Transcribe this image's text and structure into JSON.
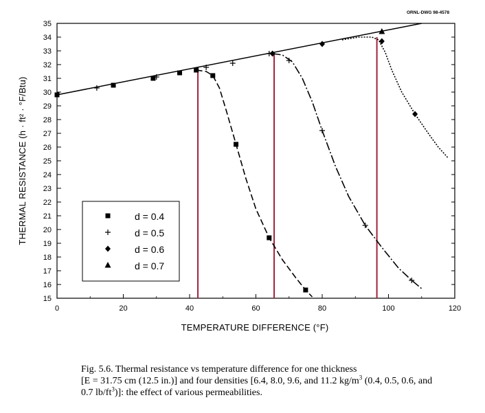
{
  "drawing_number": "ORNL-DWG 98-4578",
  "chart_data": {
    "type": "line",
    "xlabel": "TEMPERATURE DIFFERENCE (°F)",
    "ylabel": "THERMAL RESISTANCE (h · ft² · °F/Btu)",
    "xlim": [
      0,
      120
    ],
    "ylim": [
      15,
      35
    ],
    "x_ticks": [
      "0",
      "20",
      "40",
      "60",
      "80",
      "100",
      "120"
    ],
    "y_ticks": [
      "15",
      "16",
      "17",
      "18",
      "19",
      "20",
      "21",
      "22",
      "23",
      "24",
      "25",
      "26",
      "27",
      "28",
      "29",
      "30",
      "31",
      "32",
      "33",
      "34",
      "35"
    ],
    "grid": false,
    "legend_position": "bottom-left",
    "common_line": {
      "x": [
        0,
        110
      ],
      "y": [
        29.8,
        35
      ]
    },
    "series": [
      {
        "name": "d = 0.4",
        "marker": "square",
        "points": [
          [
            0,
            29.8
          ],
          [
            17,
            30.5
          ],
          [
            29,
            31.0
          ],
          [
            37,
            31.4
          ],
          [
            42,
            31.6
          ],
          [
            47,
            31.2
          ],
          [
            54,
            26.2
          ],
          [
            64,
            19.4
          ],
          [
            75,
            15.6
          ]
        ],
        "curve": [
          [
            42,
            31.6
          ],
          [
            45,
            31.5
          ],
          [
            47,
            31.2
          ],
          [
            49,
            30.3
          ],
          [
            51,
            28.7
          ],
          [
            54,
            26.2
          ],
          [
            57,
            23.7
          ],
          [
            60,
            21.5
          ],
          [
            64,
            19.4
          ],
          [
            68,
            17.8
          ],
          [
            72,
            16.5
          ],
          [
            75,
            15.6
          ],
          [
            77,
            15.1
          ]
        ]
      },
      {
        "name": "d = 0.5",
        "marker": "plus",
        "points": [
          [
            12,
            30.3
          ],
          [
            30,
            31.1
          ],
          [
            45,
            31.8
          ],
          [
            53,
            32.1
          ],
          [
            64,
            32.8
          ],
          [
            70,
            32.3
          ],
          [
            80,
            27.2
          ],
          [
            93,
            20.3
          ],
          [
            107,
            16.3
          ]
        ],
        "curve": [
          [
            65,
            32.8
          ],
          [
            68,
            32.7
          ],
          [
            71,
            32.2
          ],
          [
            74,
            31.0
          ],
          [
            77,
            29.3
          ],
          [
            80,
            27.2
          ],
          [
            84,
            24.6
          ],
          [
            88,
            22.4
          ],
          [
            93,
            20.3
          ],
          [
            98,
            18.7
          ],
          [
            103,
            17.2
          ],
          [
            107,
            16.3
          ],
          [
            110,
            15.7
          ]
        ]
      },
      {
        "name": "d = 0.6",
        "marker": "diamond",
        "points": [
          [
            65,
            32.8
          ],
          [
            80,
            33.5
          ],
          [
            98,
            33.7
          ],
          [
            108,
            28.4
          ]
        ],
        "curve": [
          [
            86,
            33.8
          ],
          [
            91,
            34.0
          ],
          [
            95,
            34.0
          ],
          [
            97,
            33.8
          ],
          [
            99,
            32.9
          ],
          [
            101,
            31.6
          ],
          [
            104,
            30.0
          ],
          [
            108,
            28.4
          ],
          [
            112,
            27.0
          ],
          [
            115,
            26.0
          ],
          [
            118,
            25.2
          ]
        ]
      },
      {
        "name": "d = 0.7",
        "marker": "triangle",
        "points": [
          [
            98,
            34.4
          ]
        ],
        "curve": []
      }
    ],
    "vertical_lines": [
      {
        "x": 42.5,
        "y": 31.6
      },
      {
        "x": 65.5,
        "y": 32.8
      },
      {
        "x": 96.5,
        "y": 34.0
      }
    ],
    "vertical_line_color": "#a3213a"
  },
  "caption": {
    "line1": "Fig. 5.6.  Thermal resistance vs temperature difference for one thickness",
    "line2_pre": "[E = 31.75 cm (12.5 in.)] and four densities [6.4, 8.0, 9.6, and 11.2 kg/m",
    "line2_sup": "3",
    "line2_post": " (0.4, 0.5, 0.6, and",
    "line3_pre": "0.7 lb/ft",
    "line3_sup": "3",
    "line3_post": ")]:  the effect of various permeabilities."
  }
}
